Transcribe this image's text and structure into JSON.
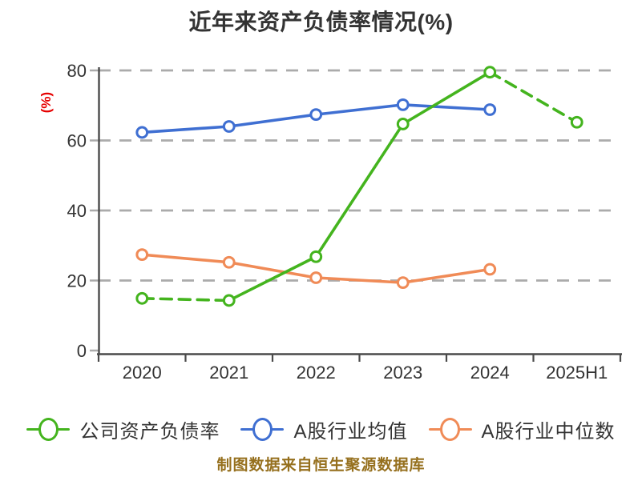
{
  "title": "近年来资产负债率情况(%)",
  "y_axis_label": "(%)",
  "footer": "制图数据来自恒生聚源数据库",
  "colors": {
    "background": "#ffffff",
    "text": "#333333",
    "axis": "#4a4a4a",
    "grid": "#ababab",
    "accent_red": "#e60000",
    "footer_color": "#96701e",
    "marker_fill": "#ffffff"
  },
  "chart_data": {
    "type": "line",
    "categories": [
      "2020",
      "2021",
      "2022",
      "2023",
      "2024",
      "2025H1"
    ],
    "ylim": [
      0,
      80
    ],
    "yticks": [
      0,
      20,
      40,
      60,
      80
    ],
    "grid": "horizontal-dashed",
    "legend_position": "bottom",
    "marker": "open-circle",
    "series": [
      {
        "id": "company-debt-ratio",
        "name": "公司资产负债率",
        "color": "#44b41e",
        "values": [
          14.9,
          14.3,
          26.8,
          64.7,
          79.5,
          65.2
        ],
        "dashed_segments": [
          [
            0,
            1
          ],
          [
            4,
            5
          ]
        ]
      },
      {
        "id": "industry-average",
        "name": "A股行业均值",
        "color": "#3f6fd2",
        "values": [
          62.3,
          64.0,
          67.4,
          70.2,
          68.8,
          null
        ],
        "dashed_segments": []
      },
      {
        "id": "industry-median",
        "name": "A股行业中位数",
        "color": "#f08b57",
        "values": [
          27.4,
          25.2,
          20.8,
          19.4,
          23.2,
          null
        ],
        "dashed_segments": []
      }
    ]
  }
}
